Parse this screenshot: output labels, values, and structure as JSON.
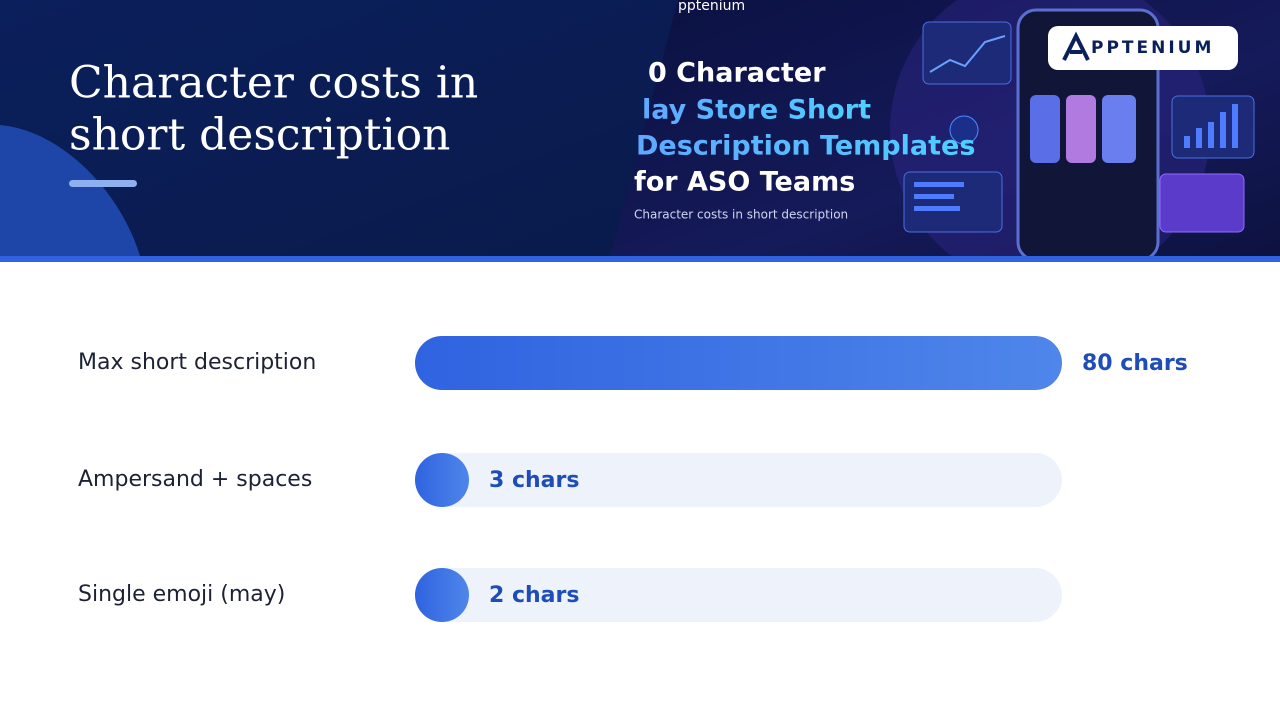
{
  "header": {
    "title_lines": [
      "Character costs in",
      "short description"
    ],
    "image_brand_small": "pptenium",
    "image_headline_lines": [
      "0 Character",
      "lay Store Short",
      "Description Templates",
      "for ASO Teams"
    ],
    "image_caption": "Character costs in short description",
    "logo": "PPTENIUM"
  },
  "chart_data": {
    "type": "bar",
    "orientation": "horizontal",
    "categories": [
      "Max short description",
      "Ampersand + spaces",
      "Single emoji (may)"
    ],
    "values": [
      80,
      3,
      2
    ],
    "value_labels": [
      "80 chars",
      "3 chars",
      "2 chars"
    ],
    "color": "#2f63e0",
    "track_color": "#eef2fb"
  }
}
